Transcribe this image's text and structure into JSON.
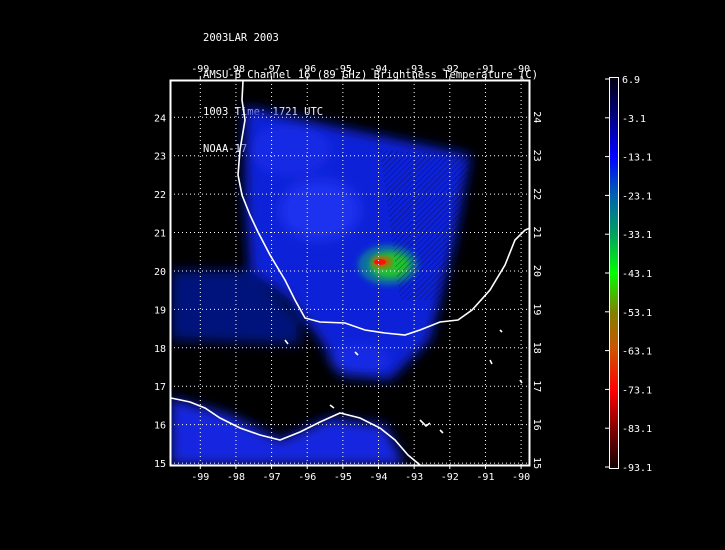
{
  "title": {
    "lines": [
      "2003LAR 2003",
      "AMSU-B Channel 16 (89 GHz) Brightness Temperature (C)",
      "1003 Time: 1721 UTC",
      "NOAA-17"
    ]
  },
  "map": {
    "lon_ticks": [
      "-99",
      "-98",
      "-97",
      "-96",
      "-95",
      "-94",
      "-93",
      "-92",
      "-91",
      "-90"
    ],
    "lat_ticks": [
      "24",
      "23",
      "22",
      "21",
      "20",
      "19",
      "18",
      "17",
      "16",
      "15"
    ],
    "lon_range": [
      -99.85,
      -89.75
    ],
    "lat_range": [
      14.95,
      24.97
    ],
    "grid": true,
    "coastline_color": "#ffffff"
  },
  "colorbar": {
    "ticks": [
      "6.9",
      "-3.1",
      "-13.1",
      "-23.1",
      "-33.1",
      "-43.1",
      "-53.1",
      "-63.1",
      "-73.1",
      "-83.1",
      "-93.1"
    ],
    "range": [
      -93.1,
      6.9
    ],
    "colors": [
      "#000010",
      "#000080",
      "#0000ff",
      "#0060b0",
      "#00a060",
      "#00ff00",
      "#808000",
      "#d05000",
      "#ff0000",
      "#800000",
      "#100000"
    ]
  }
}
